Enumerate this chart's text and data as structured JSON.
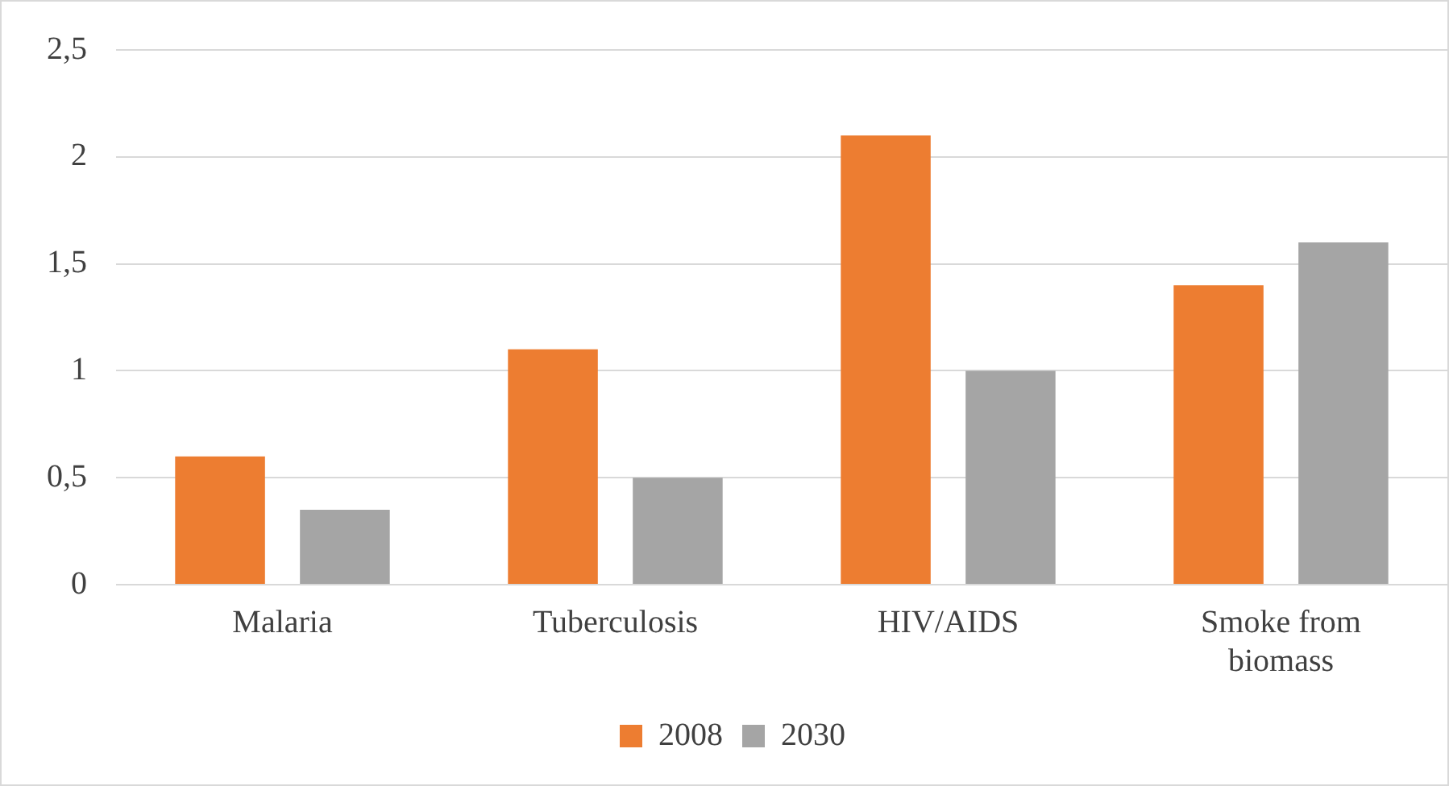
{
  "chart_data": {
    "type": "bar",
    "categories": [
      "Malaria",
      "Tuberculosis",
      "HIV/AIDS",
      "Smoke from biomass"
    ],
    "series": [
      {
        "name": "2008",
        "color": "#ed7d31",
        "values": [
          0.6,
          1.1,
          2.1,
          1.4
        ]
      },
      {
        "name": "2030",
        "color": "#a5a5a5",
        "values": [
          0.35,
          0.5,
          1.0,
          1.6
        ]
      }
    ],
    "ylim": [
      0,
      2.5
    ],
    "yticks": [
      0,
      {
        "value": 0.5,
        "label": "0,5"
      },
      1,
      {
        "value": 1.5,
        "label": "1,5"
      },
      2,
      {
        "value": 2.5,
        "label": "2,5"
      }
    ],
    "grid": "y",
    "legend": "bottom"
  }
}
